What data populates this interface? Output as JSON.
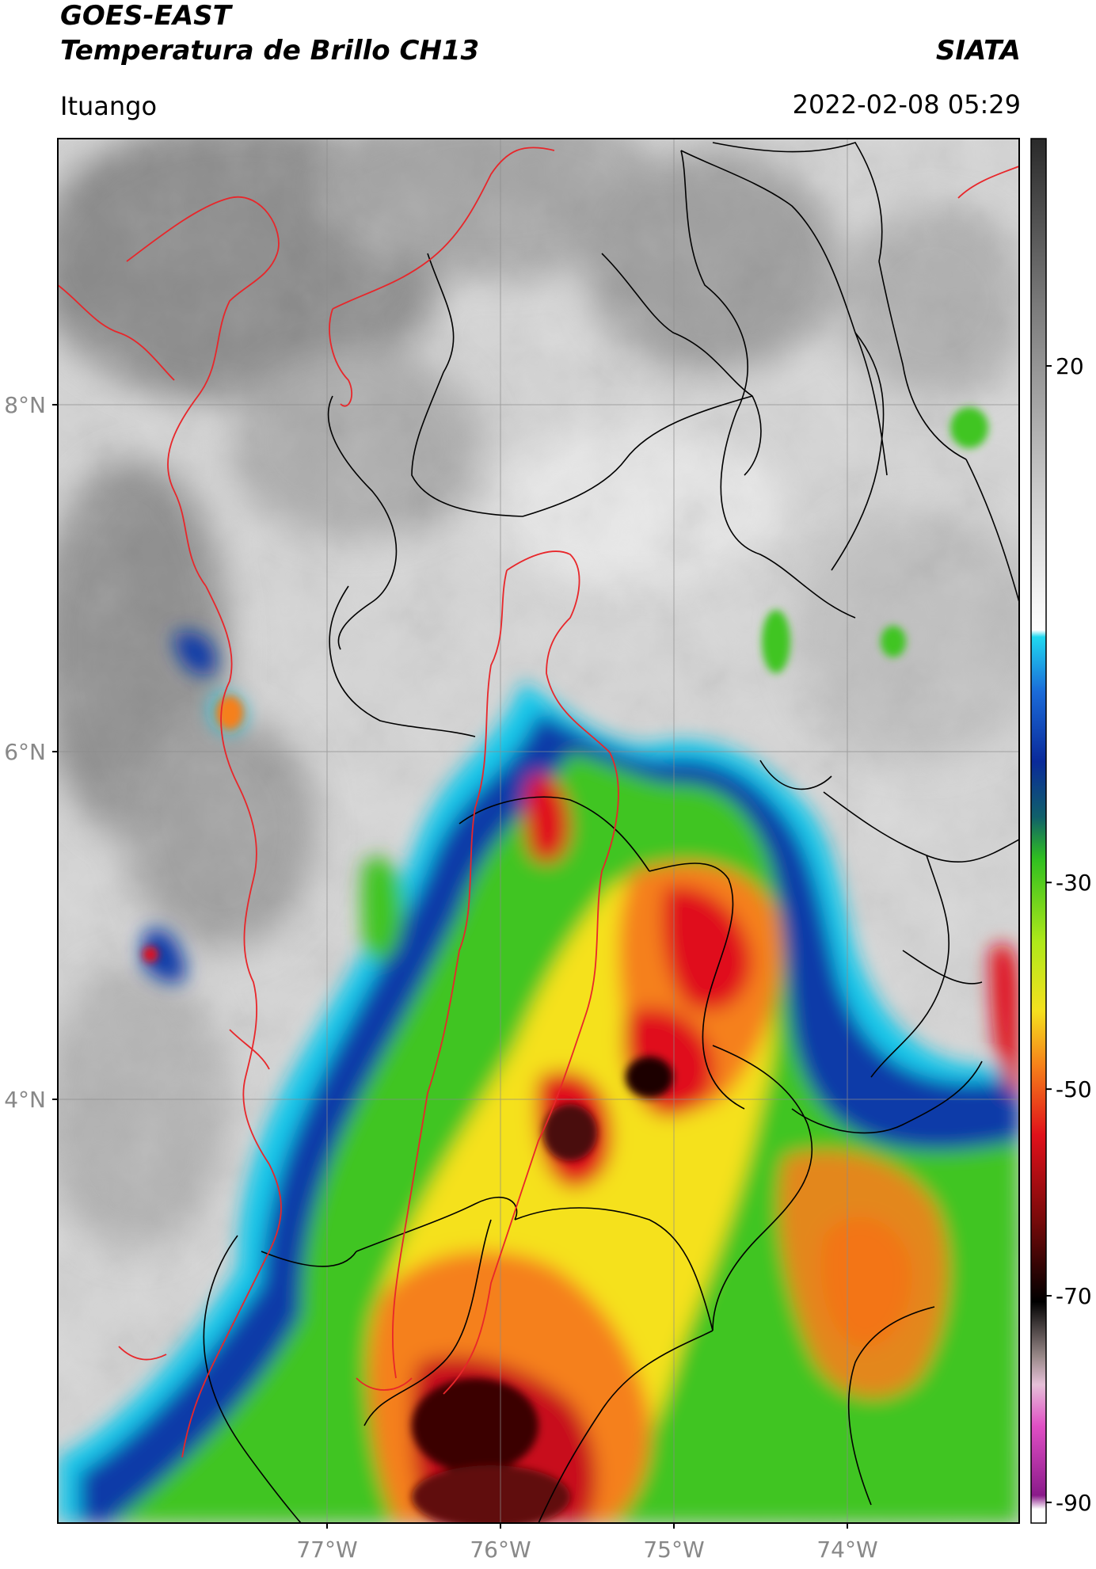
{
  "header": {
    "satellite": "GOES-EAST",
    "product": "Temperatura de Brillo CH13",
    "agency": "SIATA",
    "region": "Ituango",
    "timestamp": "2022-02-08 05:29"
  },
  "map": {
    "lat_ticks": [
      "8°N",
      "6°N",
      "4°N"
    ],
    "lon_ticks": [
      "77°W",
      "76°W",
      "75°W",
      "74°W"
    ],
    "lon_range": [
      -78.55,
      -73.0
    ],
    "lat_range": [
      1.75,
      9.55
    ],
    "colorbar_ticks": [
      {
        "value": 20,
        "label": "20"
      },
      {
        "value": -30,
        "label": "-30"
      },
      {
        "value": -50,
        "label": "-50"
      },
      {
        "value": -70,
        "label": "-70"
      },
      {
        "value": -90,
        "label": "-90"
      }
    ],
    "colorbar_range": [
      -92,
      42
    ],
    "colors": {
      "border_red": "#e8262a",
      "border_black": "#000000",
      "cloud_cold": "#000000",
      "cloud_red": "#c8101a",
      "cloud_orange": "#f07d1a",
      "cloud_yellow": "#f5e11e",
      "cloud_green": "#3fc520",
      "cloud_blue": "#0a3aa8",
      "cloud_cyan": "#18c8ea",
      "clear_gray": "#9a9a9a"
    }
  }
}
